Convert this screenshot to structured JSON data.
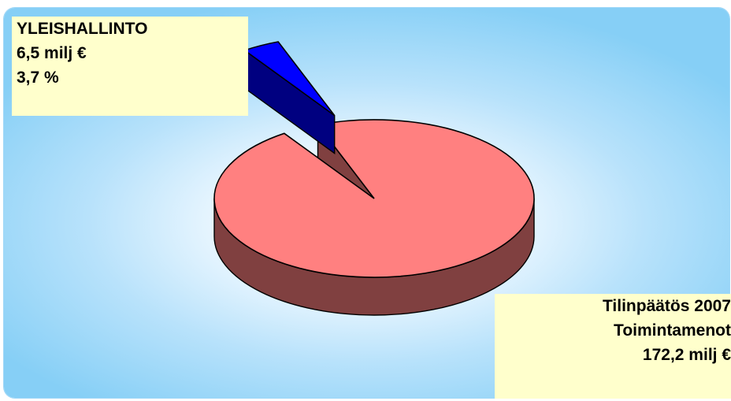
{
  "chart_data": {
    "type": "pie",
    "style": "3d-exploded",
    "slices": [
      {
        "name": "YLEISHALLINTO",
        "value": 6.5,
        "percent": 3.7,
        "color": "#0000ff",
        "exploded": true
      },
      {
        "name": "",
        "value": 165.7,
        "percent": 96.3,
        "color": "#ff8080",
        "exploded": false
      }
    ],
    "slice_label": {
      "name": "YLEISHALLINTO",
      "amount": "6,5 milj €",
      "percent": "3,7 %"
    },
    "total_label": {
      "line1": "Tilinpäätös 2007",
      "line2": "Toimintamenot",
      "line3": "172,2 milj €"
    }
  },
  "colors": {
    "label_background": "#ffffcc",
    "main_slice_top": "#ff8080",
    "main_slice_side": "#804040",
    "highlight_slice_top": "#0000ff",
    "highlight_slice_side": "#000080",
    "outline": "#000000"
  }
}
